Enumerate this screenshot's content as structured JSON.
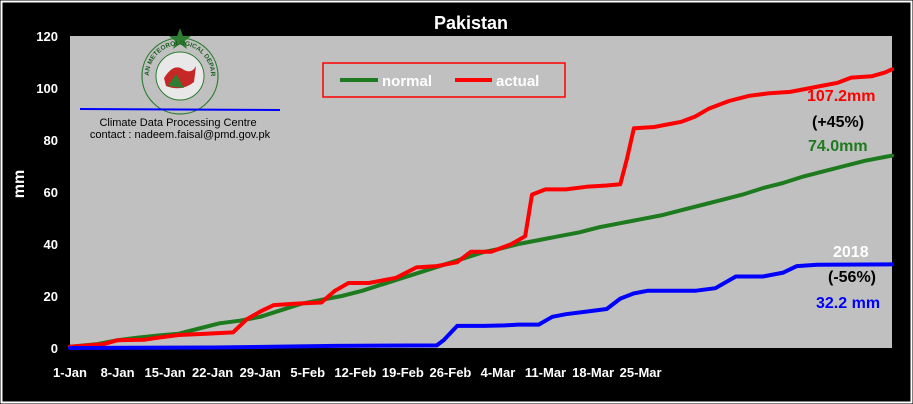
{
  "chart_data": {
    "type": "line",
    "title": "Pakistan",
    "ylabel": "mm",
    "xlabel": "",
    "ylim": [
      0,
      120
    ],
    "yticks": [
      0,
      20,
      40,
      60,
      80,
      100,
      120
    ],
    "x_ticks": [
      "1-Jan",
      "8-Jan",
      "15-Jan",
      "22-Jan",
      "29-Jan",
      "5-Feb",
      "12-Feb",
      "19-Feb",
      "26-Feb",
      "4-Mar",
      "11-Mar",
      "18-Mar",
      "25-Mar"
    ],
    "grid": false,
    "legend_position": "top-center",
    "x_unit": "day",
    "series": [
      {
        "name": "normal",
        "color": "#1e7a1e",
        "points": [
          [
            1,
            0.5
          ],
          [
            5,
            1.5
          ],
          [
            8,
            3
          ],
          [
            11,
            4
          ],
          [
            14,
            4.8
          ],
          [
            17,
            5.5
          ],
          [
            20,
            7.5
          ],
          [
            23,
            9.5
          ],
          [
            26,
            10.5
          ],
          [
            29,
            12
          ],
          [
            32,
            14.5
          ],
          [
            35,
            17
          ],
          [
            38,
            18.5
          ],
          [
            41,
            20
          ],
          [
            44,
            22
          ],
          [
            47,
            24.5
          ],
          [
            50,
            27
          ],
          [
            53,
            29.5
          ],
          [
            56,
            32
          ],
          [
            59,
            34.5
          ],
          [
            62,
            37
          ],
          [
            64,
            38
          ],
          [
            67,
            40
          ],
          [
            70,
            41.5
          ],
          [
            73,
            43
          ],
          [
            76,
            44.5
          ],
          [
            79,
            46.5
          ],
          [
            82,
            48
          ],
          [
            85,
            49.5
          ],
          [
            88,
            51
          ],
          [
            91,
            53
          ],
          [
            94,
            55
          ],
          [
            97,
            57
          ],
          [
            100,
            59
          ],
          [
            103,
            61.5
          ],
          [
            106,
            63.5
          ],
          [
            109,
            66
          ],
          [
            112,
            68
          ],
          [
            115,
            70
          ],
          [
            118,
            72
          ],
          [
            121,
            73.5
          ],
          [
            122,
            74
          ]
        ]
      },
      {
        "name": "actual",
        "color": "#ff0000",
        "points": [
          [
            1,
            0.5
          ],
          [
            6,
            1.5
          ],
          [
            8,
            3
          ],
          [
            12,
            3.2
          ],
          [
            14,
            4
          ],
          [
            17,
            5
          ],
          [
            21,
            5.5
          ],
          [
            25,
            6
          ],
          [
            27,
            11
          ],
          [
            29,
            14
          ],
          [
            31,
            16.5
          ],
          [
            34,
            17
          ],
          [
            38,
            17.5
          ],
          [
            40,
            22
          ],
          [
            42,
            25
          ],
          [
            45,
            25
          ],
          [
            49,
            27
          ],
          [
            52,
            31
          ],
          [
            55,
            31.5
          ],
          [
            58,
            33
          ],
          [
            60,
            37
          ],
          [
            63,
            37
          ],
          [
            66,
            40
          ],
          [
            68,
            43
          ],
          [
            69,
            59
          ],
          [
            71,
            61
          ],
          [
            74,
            61
          ],
          [
            77,
            62
          ],
          [
            80,
            62.5
          ],
          [
            82,
            63
          ],
          [
            83,
            73
          ],
          [
            84,
            84.5
          ],
          [
            87,
            85
          ],
          [
            89,
            86
          ],
          [
            91,
            87
          ],
          [
            93,
            89
          ],
          [
            95,
            92
          ],
          [
            98,
            95
          ],
          [
            101,
            97
          ],
          [
            104,
            98
          ],
          [
            107,
            98.5
          ],
          [
            110,
            100
          ],
          [
            112,
            101
          ],
          [
            114,
            102
          ],
          [
            116,
            104
          ],
          [
            119,
            104.5
          ],
          [
            121,
            106
          ],
          [
            122,
            107.2
          ]
        ]
      },
      {
        "name": "2018",
        "color": "#0000ff",
        "points": [
          [
            1,
            0
          ],
          [
            22,
            0.2
          ],
          [
            40,
            0.8
          ],
          [
            55,
            1
          ],
          [
            56,
            3
          ],
          [
            58,
            8.5
          ],
          [
            62,
            8.5
          ],
          [
            65,
            8.7
          ],
          [
            67,
            9
          ],
          [
            70,
            9
          ],
          [
            72,
            12
          ],
          [
            74,
            13
          ],
          [
            77,
            14
          ],
          [
            80,
            15
          ],
          [
            82,
            19
          ],
          [
            84,
            21
          ],
          [
            86,
            22
          ],
          [
            93,
            22
          ],
          [
            96,
            23
          ],
          [
            99,
            27.5
          ],
          [
            103,
            27.5
          ],
          [
            106,
            29
          ],
          [
            108,
            31.5
          ],
          [
            111,
            32
          ],
          [
            122,
            32.2
          ]
        ]
      }
    ],
    "annotations": {
      "actual_total": "107.2mm",
      "actual_departure": "(+45%)",
      "normal_total": "74.0mm",
      "year_label": "2018",
      "year_departure": "(-56%)",
      "year_total": "32.2 mm"
    }
  },
  "logo": {
    "text": "PAKISTAN METEOROLOGICAL DEPARTMENT"
  },
  "credit": {
    "line1": "Climate  Data  Processing Centre",
    "line2": "contact : nadeem.faisal@pmd.gov.pk"
  },
  "colors": {
    "plot_bg": "#c0c0c0",
    "page_bg": "#000000",
    "frame": "#ffffff",
    "legend_bg": "#c0c0c0",
    "legend_border": "#ff0000",
    "underline": "#0000ff",
    "normal": "#1e7a1e",
    "actual": "#ff0000",
    "year": "#0000ff",
    "black_text": "#000000",
    "white_text": "#ffffff"
  }
}
